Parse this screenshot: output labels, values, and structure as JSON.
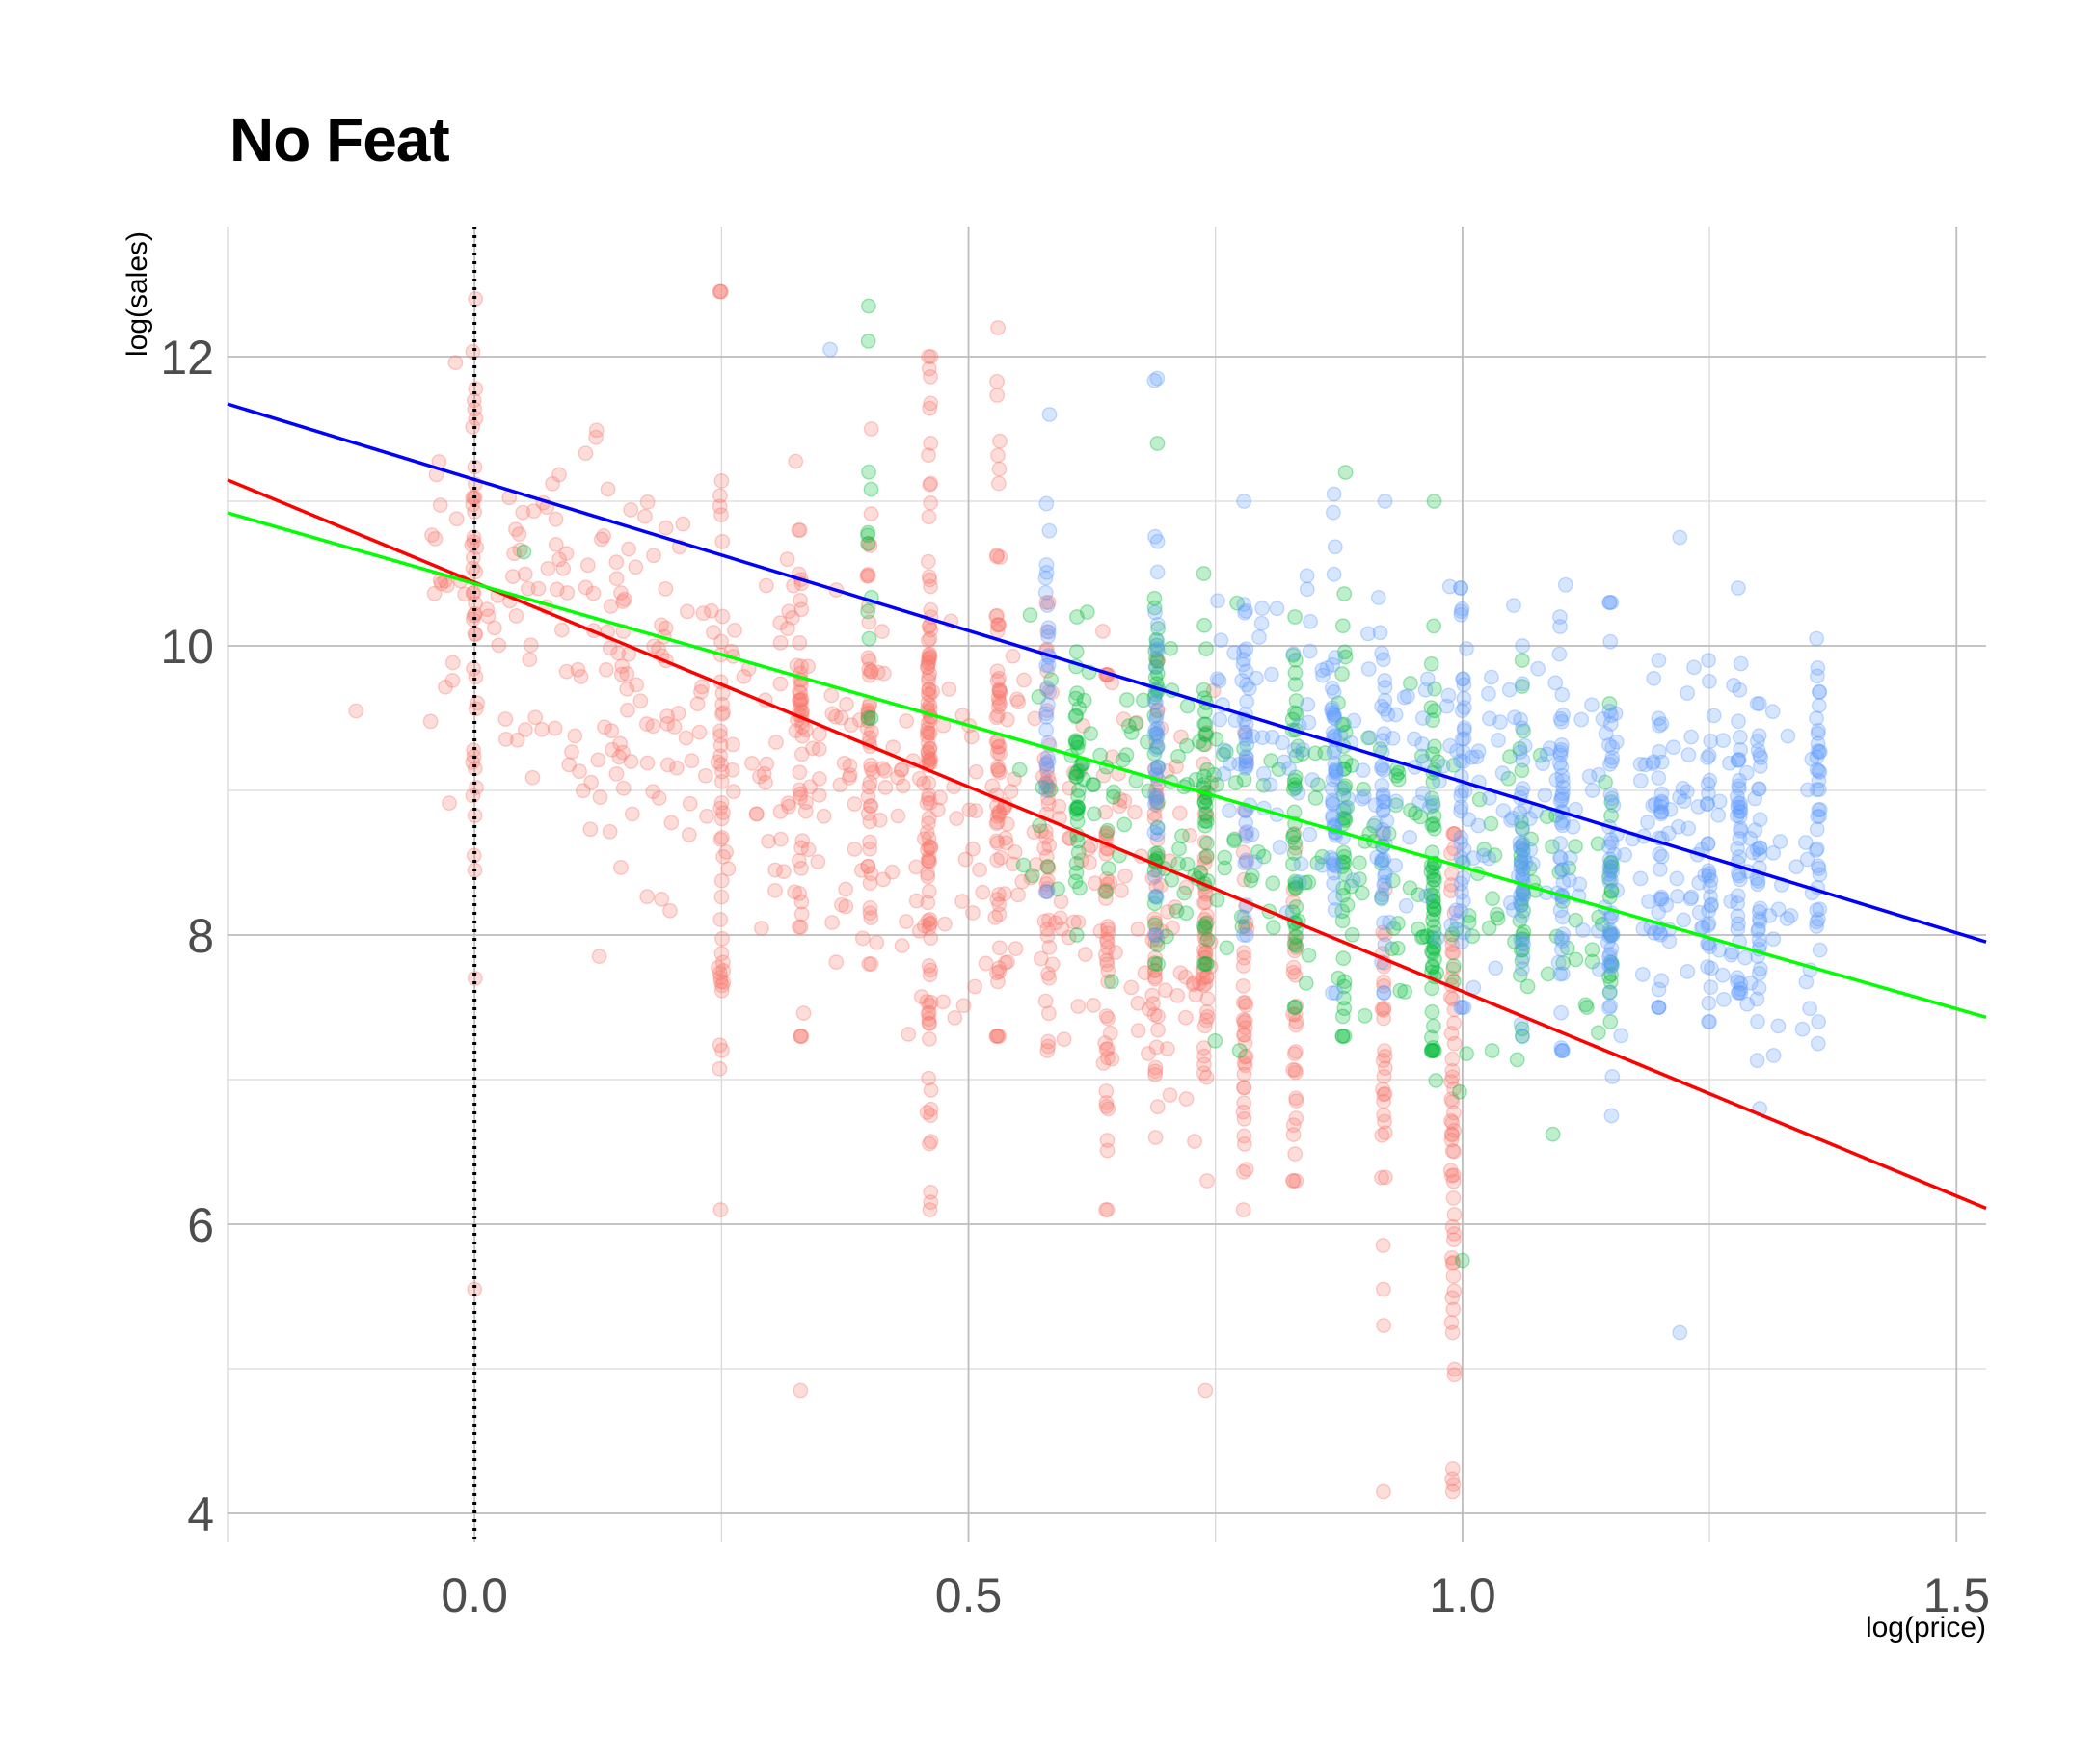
{
  "chart_data": {
    "type": "scatter",
    "title": "No Feat",
    "xlabel": "log(price)",
    "ylabel": "log(sales)",
    "xlim": [
      -0.25,
      1.53
    ],
    "ylim": [
      3.8,
      12.9
    ],
    "x_ticks": [
      0.0,
      0.5,
      1.0,
      1.5
    ],
    "x_tick_labels": [
      "0.0",
      "0.5",
      "1.0",
      "1.5"
    ],
    "y_ticks": [
      4,
      6,
      8,
      10,
      12
    ],
    "y_tick_labels": [
      "4",
      "6",
      "8",
      "10",
      "12"
    ],
    "x_minor_ticks": [
      -0.25,
      0.25,
      0.75,
      1.25
    ],
    "y_minor_ticks": [
      5,
      7,
      9,
      11
    ],
    "grid": true,
    "reference_line": {
      "x": 0.0,
      "style": "dotted",
      "color": "#000000"
    },
    "series": [
      {
        "name": "red",
        "color": "#f8766d",
        "line_color": "#ff0000",
        "fit": {
          "intercept": 10.44,
          "slope": -2.83
        },
        "columns": [
          {
            "x": 0.0,
            "y_min": 7.7,
            "y_max": 12.4,
            "center": 10.2,
            "n": 40
          },
          {
            "x": 0.25,
            "y_min": 6.1,
            "y_max": 12.45,
            "center": 9.5,
            "n": 45
          },
          {
            "x": 0.33,
            "y_min": 7.3,
            "y_max": 10.8,
            "center": 9.3,
            "n": 40
          },
          {
            "x": 0.4,
            "y_min": 7.8,
            "y_max": 11.5,
            "center": 9.4,
            "n": 45
          },
          {
            "x": 0.46,
            "y_min": 6.1,
            "y_max": 12.0,
            "center": 9.2,
            "n": 110
          },
          {
            "x": 0.53,
            "y_min": 7.3,
            "y_max": 12.2,
            "center": 9.3,
            "n": 60
          },
          {
            "x": 0.58,
            "y_min": 7.2,
            "y_max": 10.3,
            "center": 8.6,
            "n": 40
          },
          {
            "x": 0.64,
            "y_min": 6.1,
            "y_max": 9.8,
            "center": 8.1,
            "n": 40
          },
          {
            "x": 0.69,
            "y_min": 6.6,
            "y_max": 9.9,
            "center": 8.2,
            "n": 40
          },
          {
            "x": 0.74,
            "y_min": 6.3,
            "y_max": 9.4,
            "center": 7.8,
            "n": 40
          },
          {
            "x": 0.78,
            "y_min": 6.1,
            "y_max": 9.4,
            "center": 7.5,
            "n": 40
          },
          {
            "x": 0.83,
            "y_min": 6.3,
            "y_max": 8.7,
            "center": 7.5,
            "n": 30
          },
          {
            "x": 0.92,
            "y_min": 5.3,
            "y_max": 8.7,
            "center": 7.2,
            "n": 30
          },
          {
            "x": 0.99,
            "y_min": 4.2,
            "y_max": 8.7,
            "center": 6.9,
            "n": 60
          }
        ],
        "outliers": [
          [
            -0.12,
            9.55
          ],
          [
            0.0,
            5.55
          ],
          [
            0.33,
            4.85
          ],
          [
            0.74,
            4.85
          ],
          [
            0.92,
            4.15
          ],
          [
            0.99,
            4.15
          ],
          [
            0.92,
            5.55
          ],
          [
            0.99,
            5.25
          ]
        ],
        "scatter_cloud": {
          "x_range": [
            -0.05,
            0.75
          ],
          "y_center_at_x0": 10.2,
          "slope": -2.8,
          "spread": 0.75,
          "n": 450
        }
      },
      {
        "name": "green",
        "color": "#00ba38",
        "line_color": "#00ff00",
        "fit": {
          "intercept": 10.43,
          "slope": -1.96
        },
        "columns": [
          {
            "x": 0.4,
            "y_min": 9.5,
            "y_max": 12.35,
            "center": 10.5,
            "n": 12
          },
          {
            "x": 0.61,
            "y_min": 8.0,
            "y_max": 10.2,
            "center": 9.1,
            "n": 30
          },
          {
            "x": 0.69,
            "y_min": 7.8,
            "y_max": 11.4,
            "center": 9.2,
            "n": 35
          },
          {
            "x": 0.74,
            "y_min": 7.8,
            "y_max": 10.5,
            "center": 9.0,
            "n": 35
          },
          {
            "x": 0.83,
            "y_min": 7.5,
            "y_max": 10.2,
            "center": 8.7,
            "n": 35
          },
          {
            "x": 0.88,
            "y_min": 7.3,
            "y_max": 11.2,
            "center": 8.6,
            "n": 40
          },
          {
            "x": 0.97,
            "y_min": 7.2,
            "y_max": 11.0,
            "center": 8.4,
            "n": 60
          },
          {
            "x": 1.06,
            "y_min": 7.3,
            "y_max": 9.9,
            "center": 8.3,
            "n": 25
          },
          {
            "x": 1.15,
            "y_min": 7.4,
            "y_max": 9.6,
            "center": 8.2,
            "n": 20
          }
        ],
        "outliers": [
          [
            0.05,
            10.65
          ],
          [
            1.0,
            5.75
          ],
          [
            1.03,
            7.2
          ]
        ],
        "scatter_cloud": {
          "x_range": [
            0.55,
            1.15
          ],
          "y_center_at_x0": 10.2,
          "slope": -1.85,
          "spread": 0.55,
          "n": 220
        }
      },
      {
        "name": "blue",
        "color": "#619cff",
        "line_color": "#0000ff",
        "fit": {
          "intercept": 11.15,
          "slope": -2.09
        },
        "columns": [
          {
            "x": 0.58,
            "y_min": 8.3,
            "y_max": 11.6,
            "center": 9.8,
            "n": 30
          },
          {
            "x": 0.69,
            "y_min": 8.0,
            "y_max": 11.85,
            "center": 9.6,
            "n": 40
          },
          {
            "x": 0.78,
            "y_min": 8.0,
            "y_max": 11.0,
            "center": 9.2,
            "n": 35
          },
          {
            "x": 0.87,
            "y_min": 7.6,
            "y_max": 11.05,
            "center": 9.0,
            "n": 45
          },
          {
            "x": 0.92,
            "y_min": 7.6,
            "y_max": 11.0,
            "center": 8.9,
            "n": 35
          },
          {
            "x": 1.0,
            "y_min": 7.5,
            "y_max": 10.4,
            "center": 8.7,
            "n": 35
          },
          {
            "x": 1.06,
            "y_min": 7.3,
            "y_max": 10.0,
            "center": 8.6,
            "n": 35
          },
          {
            "x": 1.1,
            "y_min": 7.2,
            "y_max": 10.2,
            "center": 8.6,
            "n": 45
          },
          {
            "x": 1.15,
            "y_min": 6.75,
            "y_max": 10.3,
            "center": 8.5,
            "n": 45
          },
          {
            "x": 1.2,
            "y_min": 7.5,
            "y_max": 9.9,
            "center": 8.6,
            "n": 30
          },
          {
            "x": 1.25,
            "y_min": 7.4,
            "y_max": 9.9,
            "center": 8.5,
            "n": 30
          },
          {
            "x": 1.28,
            "y_min": 7.6,
            "y_max": 10.4,
            "center": 8.7,
            "n": 40
          },
          {
            "x": 1.3,
            "y_min": 6.8,
            "y_max": 9.6,
            "center": 8.4,
            "n": 35
          },
          {
            "x": 1.36,
            "y_min": 7.4,
            "y_max": 10.05,
            "center": 8.9,
            "n": 35
          }
        ],
        "outliers": [
          [
            0.36,
            12.05
          ],
          [
            1.22,
            5.25
          ],
          [
            1.22,
            10.75
          ]
        ],
        "scatter_cloud": {
          "x_range": [
            0.75,
            1.36
          ],
          "y_center_at_x0": 11.0,
          "slope": -2.0,
          "spread": 0.6,
          "n": 300
        }
      }
    ]
  }
}
